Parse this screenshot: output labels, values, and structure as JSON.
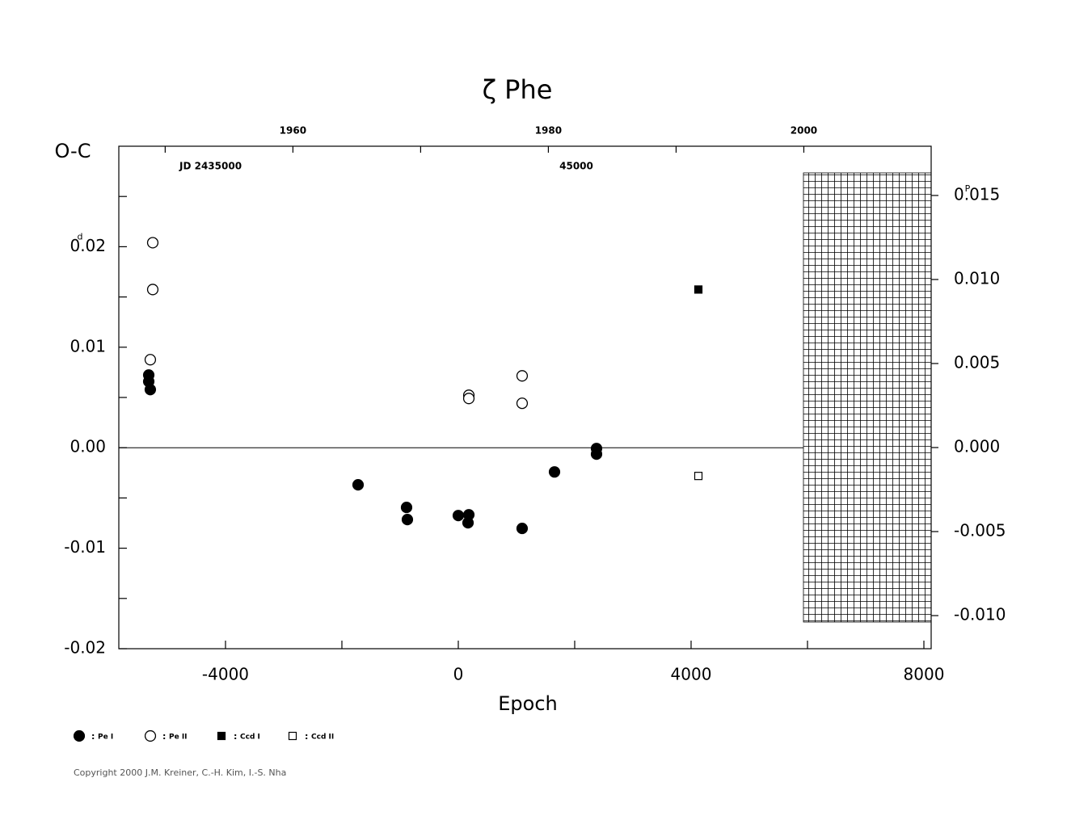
{
  "chart_data": {
    "type": "scatter",
    "title": "ζ Phe",
    "y_label": "O-C",
    "y_unit": "d",
    "y2_unit": "P",
    "x_label": "Epoch",
    "annotations": [
      "JD  2435000",
      "45000"
    ],
    "legend_separator": ":",
    "copyright": "Copyright 2000 J.M. Kreiner, C.-H. Kim, I.-S. Nha",
    "xlim": [
      -5833,
      8125
    ],
    "xticks": [
      {
        "value": -4000,
        "label": "-4000"
      },
      0,
      4000,
      8000
    ],
    "xminor": [
      -2000,
      2000,
      6000
    ],
    "ylim": [
      -0.02,
      0.03
    ],
    "yticks": [
      {
        "value": -0.02,
        "label": "-0.02"
      },
      {
        "value": -0.01,
        "label": "-0.01"
      },
      {
        "value": 0,
        "label": "0.00"
      },
      {
        "value": 0.01,
        "label": "0.01"
      },
      {
        "value": 0.02,
        "label": "0.02"
      }
    ],
    "yminor": [
      -0.015,
      -0.005,
      0.005,
      0.015,
      0.025
    ],
    "y2lim": [
      -0.01197,
      0.01793
    ],
    "y2ticks": [
      {
        "value": -0.01,
        "label": "-0.010"
      },
      {
        "value": -0.005,
        "label": "-0.005"
      },
      {
        "value": 0,
        "label": "0.000"
      },
      0.005,
      {
        "value": 0.01,
        "label": "0.010"
      },
      0.015
    ],
    "x2lim": [
      1946.37,
      2009.97
    ],
    "x2ticks": [
      1960,
      1980,
      2000
    ],
    "x2minor": [
      1950,
      1970,
      1990
    ],
    "series": [
      {
        "name": "Pe I",
        "marker": "circle",
        "filled": true,
        "color": "#000000",
        "x": [
          -5319,
          -5319,
          -5292,
          -1722,
          -889,
          -875,
          0,
          181,
          167,
          1097,
          1653,
          2375,
          2375
        ],
        "values": [
          0.00723,
          0.00659,
          0.00578,
          -0.00369,
          -0.00594,
          -0.00715,
          -0.00675,
          -0.00667,
          -0.00747,
          -0.00803,
          -0.00241,
          -8e-05,
          -0.00064
        ]
      },
      {
        "name": "Pe II",
        "marker": "circle",
        "filled": false,
        "color": "#000000",
        "x": [
          -5250,
          -5250,
          -5292,
          181,
          181,
          1097,
          1097
        ],
        "values": [
          0.0204,
          0.01574,
          0.00876,
          0.00522,
          0.0049,
          0.00715,
          0.00442
        ]
      },
      {
        "name": "Ccd I",
        "marker": "square",
        "filled": true,
        "color": "#000000",
        "x": [
          4125
        ],
        "values": [
          0.01574
        ]
      },
      {
        "name": "Ccd II",
        "marker": "square",
        "filled": false,
        "color": "#000000",
        "x": [
          4125
        ],
        "values": [
          -0.00281
        ]
      }
    ]
  }
}
